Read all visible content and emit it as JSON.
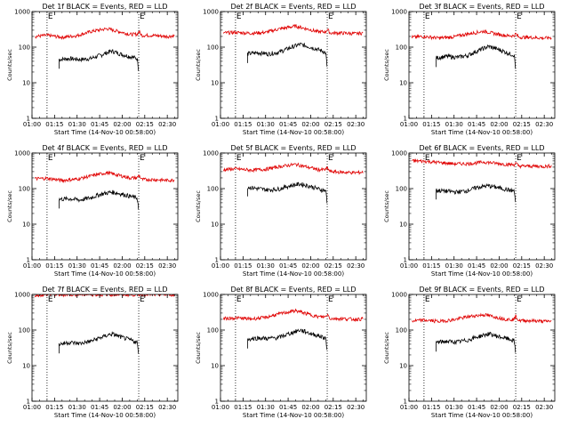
{
  "figure": {
    "colors": {
      "events": "#000000",
      "lld": "#e00000",
      "axes": "#000000",
      "markers": "#000000"
    },
    "marker_letter": "E"
  },
  "chart_data": [
    {
      "type": "line",
      "title": "Det 1f BLACK = Events, RED = LLD",
      "xlabel": "Start Time (14-Nov-10 00:58:00)",
      "ylabel": "Counts/sec",
      "x_ticks": [
        "01:00",
        "01:15",
        "01:30",
        "01:45",
        "02:00",
        "02:15",
        "02:30"
      ],
      "y_ticks": [
        "1",
        "10",
        "100",
        "1000"
      ],
      "ylog": true,
      "ylim": [
        1,
        1000
      ],
      "xlim_minutes": [
        60,
        157
      ],
      "marker_lines_minutes": [
        70,
        131
      ],
      "series": [
        {
          "name": "Events",
          "color": "#000000",
          "x_minutes": [
            78,
            85,
            92,
            99,
            106,
            113,
            120,
            127,
            130,
            131
          ],
          "values": [
            45,
            48,
            45,
            48,
            60,
            78,
            62,
            52,
            48,
            20
          ]
        },
        {
          "name": "LLD",
          "color": "#e00000",
          "x_minutes": [
            62,
            70,
            80,
            90,
            100,
            110,
            117,
            125,
            130,
            131,
            133,
            140,
            150,
            155
          ],
          "values": [
            200,
            215,
            190,
            210,
            280,
            330,
            280,
            230,
            230,
            280,
            215,
            215,
            200,
            210
          ]
        }
      ]
    },
    {
      "type": "line",
      "title": "Det 2f BLACK = Events, RED = LLD",
      "xlabel": "Start Time (14-Nov-10 00:58:00)",
      "ylabel": "Counts/sec",
      "x_ticks": [
        "01:00",
        "01:15",
        "01:30",
        "01:45",
        "02:00",
        "02:15",
        "02:30"
      ],
      "y_ticks": [
        "1",
        "10",
        "100",
        "1000"
      ],
      "ylog": true,
      "ylim": [
        1,
        1000
      ],
      "xlim_minutes": [
        60,
        157
      ],
      "marker_lines_minutes": [
        70,
        131
      ],
      "series": [
        {
          "name": "Events",
          "color": "#000000",
          "x_minutes": [
            78,
            85,
            92,
            99,
            106,
            113,
            120,
            127,
            130,
            131
          ],
          "values": [
            65,
            70,
            65,
            72,
            95,
            120,
            100,
            80,
            70,
            18
          ]
        },
        {
          "name": "LLD",
          "color": "#e00000",
          "x_minutes": [
            62,
            70,
            80,
            90,
            100,
            110,
            117,
            125,
            130,
            131,
            133,
            140,
            150,
            155
          ],
          "values": [
            250,
            260,
            245,
            260,
            330,
            390,
            330,
            270,
            270,
            320,
            250,
            250,
            240,
            250
          ]
        }
      ]
    },
    {
      "type": "line",
      "title": "Det 3f BLACK = Events, RED = LLD",
      "xlabel": "Start Time (14-Nov-10 00:58:00)",
      "ylabel": "Counts/sec",
      "x_ticks": [
        "01:00",
        "01:15",
        "01:30",
        "01:45",
        "02:00",
        "02:15",
        "02:30"
      ],
      "y_ticks": [
        "1",
        "10",
        "100",
        "1000"
      ],
      "ylog": true,
      "ylim": [
        1,
        1000
      ],
      "xlim_minutes": [
        60,
        157
      ],
      "marker_lines_minutes": [
        70,
        131
      ],
      "series": [
        {
          "name": "Events",
          "color": "#000000",
          "x_minutes": [
            78,
            85,
            92,
            99,
            106,
            113,
            120,
            127,
            130,
            131
          ],
          "values": [
            50,
            55,
            52,
            58,
            80,
            105,
            85,
            65,
            60,
            18
          ]
        },
        {
          "name": "LLD",
          "color": "#e00000",
          "x_minutes": [
            62,
            70,
            80,
            90,
            100,
            110,
            117,
            125,
            130,
            131,
            133,
            140,
            150,
            155
          ],
          "values": [
            190,
            200,
            180,
            195,
            240,
            280,
            240,
            210,
            210,
            240,
            190,
            190,
            180,
            185
          ]
        }
      ]
    },
    {
      "type": "line",
      "title": "Det 4f BLACK = Events, RED = LLD",
      "xlabel": "Start Time (14-Nov-10 00:58:00)",
      "ylabel": "Counts/sec",
      "x_ticks": [
        "01:00",
        "01:15",
        "01:30",
        "01:45",
        "02:00",
        "02:15",
        "02:30"
      ],
      "y_ticks": [
        "1",
        "10",
        "100",
        "1000"
      ],
      "ylog": true,
      "ylim": [
        1,
        1000
      ],
      "xlim_minutes": [
        60,
        157
      ],
      "marker_lines_minutes": [
        70,
        131
      ],
      "series": [
        {
          "name": "Events",
          "color": "#000000",
          "x_minutes": [
            78,
            85,
            92,
            99,
            106,
            113,
            120,
            127,
            130,
            131
          ],
          "values": [
            50,
            52,
            48,
            55,
            70,
            80,
            70,
            58,
            55,
            20
          ]
        },
        {
          "name": "LLD",
          "color": "#e00000",
          "x_minutes": [
            62,
            70,
            80,
            90,
            100,
            110,
            117,
            125,
            130,
            131,
            133,
            140,
            150,
            155
          ],
          "values": [
            190,
            195,
            170,
            185,
            230,
            280,
            240,
            200,
            200,
            240,
            180,
            180,
            170,
            175
          ]
        }
      ]
    },
    {
      "type": "line",
      "title": "Det 5f BLACK = Events, RED = LLD",
      "xlabel": "Start Time (14-Nov-10 00:58:00)",
      "ylabel": "Counts/sec",
      "x_ticks": [
        "01:00",
        "01:15",
        "01:30",
        "01:45",
        "02:00",
        "02:15",
        "02:30"
      ],
      "y_ticks": [
        "1",
        "10",
        "100",
        "1000"
      ],
      "ylog": true,
      "ylim": [
        1,
        1000
      ],
      "xlim_minutes": [
        60,
        157
      ],
      "marker_lines_minutes": [
        70,
        131
      ],
      "series": [
        {
          "name": "Events",
          "color": "#000000",
          "x_minutes": [
            78,
            85,
            92,
            99,
            106,
            113,
            120,
            127,
            130,
            131
          ],
          "values": [
            110,
            100,
            92,
            98,
            120,
            135,
            115,
            92,
            90,
            30
          ]
        },
        {
          "name": "LLD",
          "color": "#e00000",
          "x_minutes": [
            62,
            70,
            80,
            90,
            100,
            110,
            117,
            125,
            130,
            131,
            133,
            140,
            150,
            155
          ],
          "values": [
            340,
            360,
            330,
            350,
            420,
            480,
            410,
            340,
            340,
            380,
            300,
            290,
            280,
            290
          ]
        }
      ]
    },
    {
      "type": "line",
      "title": "Det 6f BLACK = Events, RED = LLD",
      "xlabel": "Start Time (14-Nov-10 00:58:00)",
      "ylabel": "Counts/sec",
      "x_ticks": [
        "01:00",
        "01:15",
        "01:30",
        "01:45",
        "02:00",
        "02:15",
        "02:30"
      ],
      "y_ticks": [
        "1",
        "10",
        "100",
        "1000"
      ],
      "ylog": true,
      "ylim": [
        1,
        1000
      ],
      "xlim_minutes": [
        60,
        157
      ],
      "marker_lines_minutes": [
        70,
        131
      ],
      "series": [
        {
          "name": "Events",
          "color": "#000000",
          "x_minutes": [
            78,
            85,
            92,
            99,
            106,
            113,
            120,
            127,
            130,
            131
          ],
          "values": [
            90,
            85,
            80,
            88,
            110,
            120,
            105,
            90,
            85,
            35
          ]
        },
        {
          "name": "LLD",
          "color": "#e00000",
          "x_minutes": [
            62,
            70,
            80,
            90,
            100,
            110,
            117,
            125,
            130,
            131,
            133,
            140,
            150,
            155
          ],
          "values": [
            600,
            590,
            540,
            500,
            500,
            560,
            520,
            480,
            470,
            520,
            430,
            430,
            420,
            440
          ]
        }
      ]
    },
    {
      "type": "line",
      "title": "Det 7f BLACK = Events, RED = LLD",
      "xlabel": "Start Time (14-Nov-10 00:58:00)",
      "ylabel": "Counts/sec",
      "x_ticks": [
        "01:00",
        "01:15",
        "01:30",
        "01:45",
        "02:00",
        "02:15",
        "02:30"
      ],
      "y_ticks": [
        "1",
        "10",
        "100",
        "1000"
      ],
      "ylog": true,
      "ylim": [
        1,
        1000
      ],
      "xlim_minutes": [
        60,
        157
      ],
      "marker_lines_minutes": [
        70,
        131
      ],
      "series": [
        {
          "name": "Events",
          "color": "#000000",
          "x_minutes": [
            78,
            85,
            92,
            99,
            106,
            113,
            120,
            127,
            130,
            131
          ],
          "values": [
            40,
            45,
            42,
            48,
            62,
            78,
            62,
            50,
            45,
            15
          ]
        },
        {
          "name": "LLD",
          "color": "#e00000",
          "x_minutes": [
            62,
            70,
            80,
            90,
            100,
            110,
            117,
            125,
            130,
            131,
            133,
            140,
            150,
            155
          ],
          "values": [
            950,
            1000,
            980,
            1000,
            990,
            1000,
            1000,
            990,
            980,
            1000,
            1000,
            990,
            1000,
            980
          ]
        }
      ]
    },
    {
      "type": "line",
      "title": "Det 8f BLACK = Events, RED = LLD",
      "xlabel": "Start Time (14-Nov-10 00:58:00)",
      "ylabel": "Counts/sec",
      "x_ticks": [
        "01:00",
        "01:15",
        "01:30",
        "01:45",
        "02:00",
        "02:15",
        "02:30"
      ],
      "y_ticks": [
        "1",
        "10",
        "100",
        "1000"
      ],
      "ylog": true,
      "ylim": [
        1,
        1000
      ],
      "xlim_minutes": [
        60,
        157
      ],
      "marker_lines_minutes": [
        70,
        131
      ],
      "series": [
        {
          "name": "Events",
          "color": "#000000",
          "x_minutes": [
            78,
            85,
            92,
            99,
            106,
            113,
            120,
            127,
            130,
            131
          ],
          "values": [
            55,
            60,
            58,
            62,
            80,
            100,
            80,
            65,
            60,
            20
          ]
        },
        {
          "name": "LLD",
          "color": "#e00000",
          "x_minutes": [
            62,
            70,
            80,
            90,
            100,
            110,
            117,
            125,
            130,
            131,
            133,
            140,
            150,
            155
          ],
          "values": [
            210,
            220,
            205,
            225,
            290,
            350,
            290,
            235,
            235,
            280,
            210,
            210,
            200,
            205
          ]
        }
      ]
    },
    {
      "type": "line",
      "title": "Det 9f BLACK = Events, RED = LLD",
      "xlabel": "Start Time (14-Nov-10 00:58:00)",
      "ylabel": "Counts/sec",
      "x_ticks": [
        "01:00",
        "01:15",
        "01:30",
        "01:45",
        "02:00",
        "02:15",
        "02:30"
      ],
      "y_ticks": [
        "1",
        "10",
        "100",
        "1000"
      ],
      "ylog": true,
      "ylim": [
        1,
        1000
      ],
      "xlim_minutes": [
        60,
        157
      ],
      "marker_lines_minutes": [
        70,
        131
      ],
      "series": [
        {
          "name": "Events",
          "color": "#000000",
          "x_minutes": [
            78,
            85,
            92,
            99,
            106,
            113,
            120,
            127,
            130,
            131
          ],
          "values": [
            45,
            48,
            46,
            52,
            65,
            78,
            65,
            55,
            50,
            18
          ]
        },
        {
          "name": "LLD",
          "color": "#e00000",
          "x_minutes": [
            62,
            70,
            80,
            90,
            100,
            110,
            117,
            125,
            130,
            131,
            133,
            140,
            150,
            155
          ],
          "values": [
            180,
            190,
            175,
            195,
            240,
            270,
            235,
            200,
            200,
            250,
            185,
            185,
            175,
            180
          ]
        }
      ]
    }
  ]
}
